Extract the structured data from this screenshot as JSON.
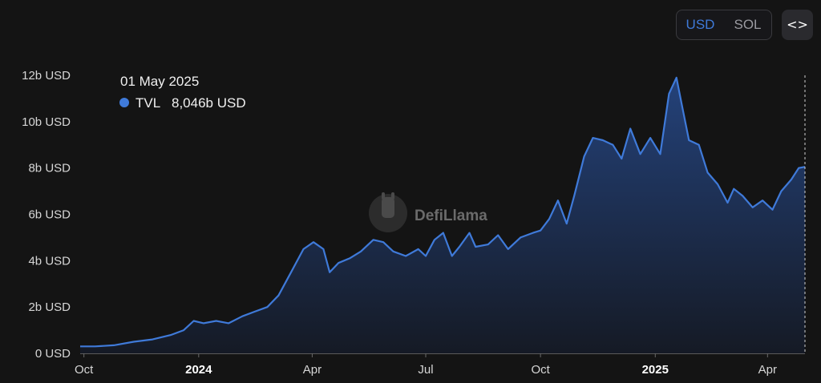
{
  "controls": {
    "currency_options": [
      "USD",
      "SOL"
    ],
    "selected_currency": "USD",
    "embed_icon": "code-brackets-icon",
    "embed_label": "<>"
  },
  "watermark": {
    "text": "DefiLlama",
    "icon": "llama-logo-icon"
  },
  "tooltip": {
    "date": "01 May 2025",
    "series_label": "TVL",
    "value_text": "8,046b USD",
    "marker_color": "#3f7ad9"
  },
  "colors": {
    "line": "#3f7ad9",
    "area_top": "#24427a",
    "area_bottom": "#151a25",
    "background": "#141414"
  },
  "chart_data": {
    "type": "area",
    "title": "",
    "xlabel": "",
    "ylabel": "",
    "y_unit": "USD",
    "ylim": [
      0,
      12
    ],
    "yticks": [
      {
        "value": 0,
        "label": "0 USD"
      },
      {
        "value": 2,
        "label": "2b USD"
      },
      {
        "value": 4,
        "label": "4b USD"
      },
      {
        "value": 6,
        "label": "6b USD"
      },
      {
        "value": 8,
        "label": "8b USD"
      },
      {
        "value": 10,
        "label": "10b USD"
      },
      {
        "value": 12,
        "label": "12b USD"
      }
    ],
    "xlim": [
      "2023-09-28",
      "2025-05-01"
    ],
    "xticks": [
      {
        "date": "2023-10-01",
        "label": "Oct",
        "bold": false
      },
      {
        "date": "2024-01-01",
        "label": "2024",
        "bold": true
      },
      {
        "date": "2024-04-01",
        "label": "Apr",
        "bold": false
      },
      {
        "date": "2024-07-01",
        "label": "Jul",
        "bold": false
      },
      {
        "date": "2024-10-01",
        "label": "Oct",
        "bold": false
      },
      {
        "date": "2025-01-01",
        "label": "2025",
        "bold": true
      },
      {
        "date": "2025-04-01",
        "label": "Apr",
        "bold": false
      }
    ],
    "grid": false,
    "legend": "none",
    "series": [
      {
        "x": [
          "2023-09-28",
          "2023-10-10",
          "2023-10-25",
          "2023-11-10",
          "2023-11-25",
          "2023-12-10",
          "2023-12-20",
          "2023-12-28",
          "2024-01-05",
          "2024-01-15",
          "2024-01-25",
          "2024-02-05",
          "2024-02-15",
          "2024-02-25",
          "2024-03-05",
          "2024-03-15",
          "2024-03-25",
          "2024-04-02",
          "2024-04-10",
          "2024-04-15",
          "2024-04-22",
          "2024-05-01",
          "2024-05-10",
          "2024-05-20",
          "2024-05-28",
          "2024-06-05",
          "2024-06-15",
          "2024-06-25",
          "2024-07-01",
          "2024-07-08",
          "2024-07-15",
          "2024-07-22",
          "2024-07-28",
          "2024-08-05",
          "2024-08-10",
          "2024-08-20",
          "2024-08-28",
          "2024-09-05",
          "2024-09-15",
          "2024-09-25",
          "2024-10-01",
          "2024-10-08",
          "2024-10-15",
          "2024-10-22",
          "2024-10-28",
          "2024-11-05",
          "2024-11-12",
          "2024-11-20",
          "2024-11-28",
          "2024-12-05",
          "2024-12-12",
          "2024-12-20",
          "2024-12-28",
          "2025-01-05",
          "2025-01-12",
          "2025-01-18",
          "2025-01-22",
          "2025-01-28",
          "2025-02-05",
          "2025-02-12",
          "2025-02-20",
          "2025-02-28",
          "2025-03-05",
          "2025-03-12",
          "2025-03-20",
          "2025-03-28",
          "2025-04-05",
          "2025-04-12",
          "2025-04-20",
          "2025-04-26",
          "2025-05-01"
        ],
        "y": [
          0.3,
          0.3,
          0.35,
          0.5,
          0.6,
          0.8,
          1.0,
          1.4,
          1.3,
          1.4,
          1.3,
          1.6,
          1.8,
          2.0,
          2.5,
          3.5,
          4.5,
          4.8,
          4.5,
          3.5,
          3.9,
          4.1,
          4.4,
          4.9,
          4.8,
          4.4,
          4.2,
          4.5,
          4.2,
          4.9,
          5.2,
          4.2,
          4.6,
          5.2,
          4.6,
          4.7,
          5.1,
          4.5,
          5.0,
          5.2,
          5.3,
          5.8,
          6.6,
          5.6,
          6.8,
          8.5,
          9.3,
          9.2,
          9.0,
          8.4,
          9.7,
          8.6,
          9.3,
          8.6,
          11.2,
          11.9,
          10.8,
          9.2,
          9.0,
          7.8,
          7.3,
          6.5,
          7.1,
          6.8,
          6.3,
          6.6,
          6.2,
          7.0,
          7.5,
          8.0,
          8.05
        ]
      }
    ]
  }
}
